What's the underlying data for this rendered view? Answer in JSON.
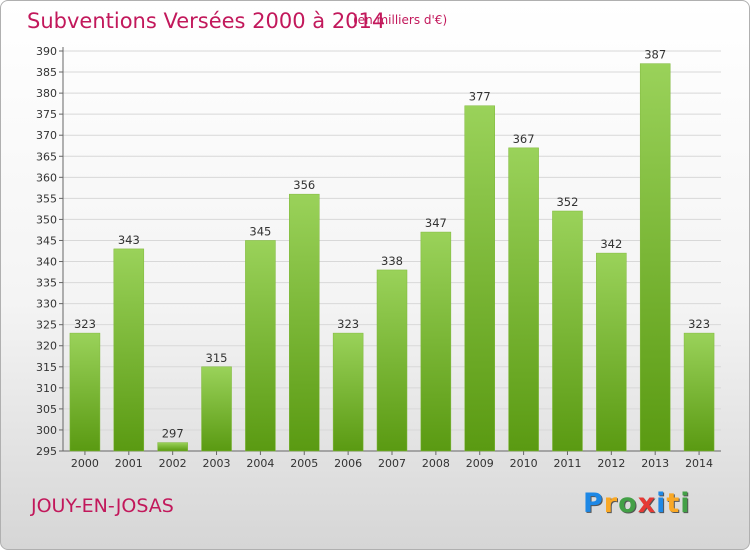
{
  "header": {
    "title": "Subventions Versées 2000 à 2014",
    "unit_note": "(en milliers d'€)"
  },
  "footer": {
    "commune": "JOUY-EN-JOSAS",
    "logo_letters": [
      "P",
      "r",
      "o",
      "x",
      "i",
      "t",
      "i"
    ],
    "logo_colors": [
      "#1e88e5",
      "#f9a825",
      "#43a047",
      "#e53935",
      "#1e88e5",
      "#f9a825",
      "#43a047"
    ]
  },
  "colors": {
    "title": "#c2185b",
    "bar_top": "#9ad25a",
    "bar_bottom": "#5a9a12",
    "grid": "#d8d8d8"
  },
  "chart_data": {
    "type": "bar",
    "categories": [
      "2000",
      "2001",
      "2002",
      "2003",
      "2004",
      "2005",
      "2006",
      "2007",
      "2008",
      "2009",
      "2010",
      "2011",
      "2012",
      "2013",
      "2014"
    ],
    "values": [
      323,
      343,
      297,
      315,
      345,
      356,
      323,
      338,
      347,
      377,
      367,
      352,
      342,
      387,
      323
    ],
    "value_labels": [
      "323",
      "343",
      "297",
      "315",
      "345",
      "356",
      "323",
      "338",
      "347",
      "377",
      "367",
      "352",
      "342",
      "387",
      "323"
    ],
    "title": "Subventions Versées 2000 à 2014",
    "ylim": [
      295,
      390
    ],
    "yticks": [
      295,
      300,
      305,
      310,
      315,
      320,
      325,
      330,
      335,
      340,
      345,
      350,
      355,
      360,
      365,
      370,
      375,
      380,
      385,
      390
    ],
    "grid": true,
    "legend": "none"
  }
}
